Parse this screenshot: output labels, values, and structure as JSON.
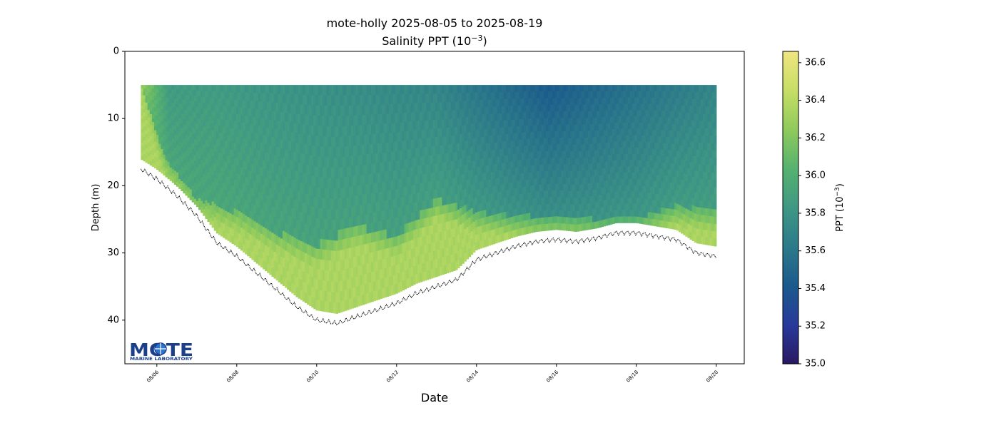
{
  "chart_data": {
    "type": "scatter",
    "title": "mote-holly 2025-08-05 to 2025-08-19",
    "subtitle": "Salinity PPT (10",
    "subtitle_exp": "−3",
    "subtitle_end": ")",
    "xlabel": "Date",
    "ylabel": "Depth (m)",
    "x_ticks": [
      "08/06",
      "08/08",
      "08/10",
      "08/12",
      "08/14",
      "08/16",
      "08/18",
      "08/20"
    ],
    "x_range_days": [
      5.2,
      20.7
    ],
    "x_tick_days": [
      6,
      8,
      10,
      12,
      14,
      16,
      18,
      20
    ],
    "ylim": [
      46.5,
      0
    ],
    "y_ticks": [
      0,
      10,
      20,
      30,
      40
    ],
    "colorbar": {
      "label": "PPT (10",
      "label_exp": "−3",
      "label_end": ")",
      "range": [
        35.0,
        36.66
      ],
      "ticks": [
        35.0,
        35.2,
        35.4,
        35.6,
        35.8,
        36.0,
        36.2,
        36.4,
        36.6
      ],
      "colormap": "haline",
      "colors": [
        "#2a1863",
        "#273a9a",
        "#1b5a8c",
        "#2c7a8a",
        "#3f9884",
        "#56b26f",
        "#8fca5c",
        "#c7de66",
        "#efe580"
      ]
    },
    "profile_start_day": 5.6,
    "profile_end_day": 20.0,
    "top_depth_m": 5.0,
    "bottom_depth_profile": [
      {
        "day": 5.6,
        "depth": 17.5
      },
      {
        "day": 6.0,
        "depth": 19.0
      },
      {
        "day": 6.5,
        "depth": 21.5
      },
      {
        "day": 7.0,
        "depth": 24.5
      },
      {
        "day": 7.5,
        "depth": 28.5
      },
      {
        "day": 8.0,
        "depth": 30.5
      },
      {
        "day": 8.5,
        "depth": 33.0
      },
      {
        "day": 9.0,
        "depth": 35.5
      },
      {
        "day": 9.5,
        "depth": 38.0
      },
      {
        "day": 10.0,
        "depth": 40.0
      },
      {
        "day": 10.5,
        "depth": 40.5
      },
      {
        "day": 11.0,
        "depth": 39.5
      },
      {
        "day": 11.5,
        "depth": 38.5
      },
      {
        "day": 12.0,
        "depth": 37.5
      },
      {
        "day": 12.5,
        "depth": 36.0
      },
      {
        "day": 13.0,
        "depth": 35.0
      },
      {
        "day": 13.5,
        "depth": 34.0
      },
      {
        "day": 14.0,
        "depth": 31.0
      },
      {
        "day": 14.5,
        "depth": 30.0
      },
      {
        "day": 15.0,
        "depth": 29.0
      },
      {
        "day": 15.5,
        "depth": 28.3
      },
      {
        "day": 16.0,
        "depth": 28.0
      },
      {
        "day": 16.5,
        "depth": 28.3
      },
      {
        "day": 17.0,
        "depth": 27.8
      },
      {
        "day": 17.5,
        "depth": 27.0
      },
      {
        "day": 18.0,
        "depth": 27.0
      },
      {
        "day": 18.5,
        "depth": 27.5
      },
      {
        "day": 19.0,
        "depth": 28.0
      },
      {
        "day": 19.5,
        "depth": 30.0
      },
      {
        "day": 20.0,
        "depth": 30.5
      }
    ],
    "surface_salinity_profile": [
      {
        "day": 5.6,
        "ppt": 36.3
      },
      {
        "day": 6.3,
        "ppt": 35.85
      },
      {
        "day": 7.5,
        "ppt": 35.85
      },
      {
        "day": 9.0,
        "ppt": 35.8
      },
      {
        "day": 11.0,
        "ppt": 35.75
      },
      {
        "day": 13.0,
        "ppt": 35.7
      },
      {
        "day": 14.5,
        "ppt": 35.55
      },
      {
        "day": 15.8,
        "ppt": 35.42
      },
      {
        "day": 17.0,
        "ppt": 35.5
      },
      {
        "day": 18.5,
        "ppt": 35.6
      },
      {
        "day": 20.0,
        "ppt": 35.7
      }
    ],
    "halocline_depth_profile": [
      {
        "day": 5.6,
        "depth": 5.0
      },
      {
        "day": 6.2,
        "depth": 16.0
      },
      {
        "day": 7.0,
        "depth": 22.0
      },
      {
        "day": 8.0,
        "depth": 24.0
      },
      {
        "day": 9.0,
        "depth": 27.0
      },
      {
        "day": 10.0,
        "depth": 29.0
      },
      {
        "day": 11.0,
        "depth": 26.0
      },
      {
        "day": 12.0,
        "depth": 27.5
      },
      {
        "day": 13.0,
        "depth": 22.0
      },
      {
        "day": 14.0,
        "depth": 24.0
      },
      {
        "day": 15.0,
        "depth": 24.5
      },
      {
        "day": 16.0,
        "depth": 24.5
      },
      {
        "day": 17.0,
        "depth": 25.0
      },
      {
        "day": 18.0,
        "depth": 25.0
      },
      {
        "day": 19.0,
        "depth": 23.0
      },
      {
        "day": 20.0,
        "depth": 24.0
      }
    ],
    "deep_salinity_ppt": 36.35,
    "grid": false,
    "logo": {
      "text": "MOTE",
      "subtext": "MARINE LABORATORY",
      "placement": "bottom-left"
    }
  }
}
